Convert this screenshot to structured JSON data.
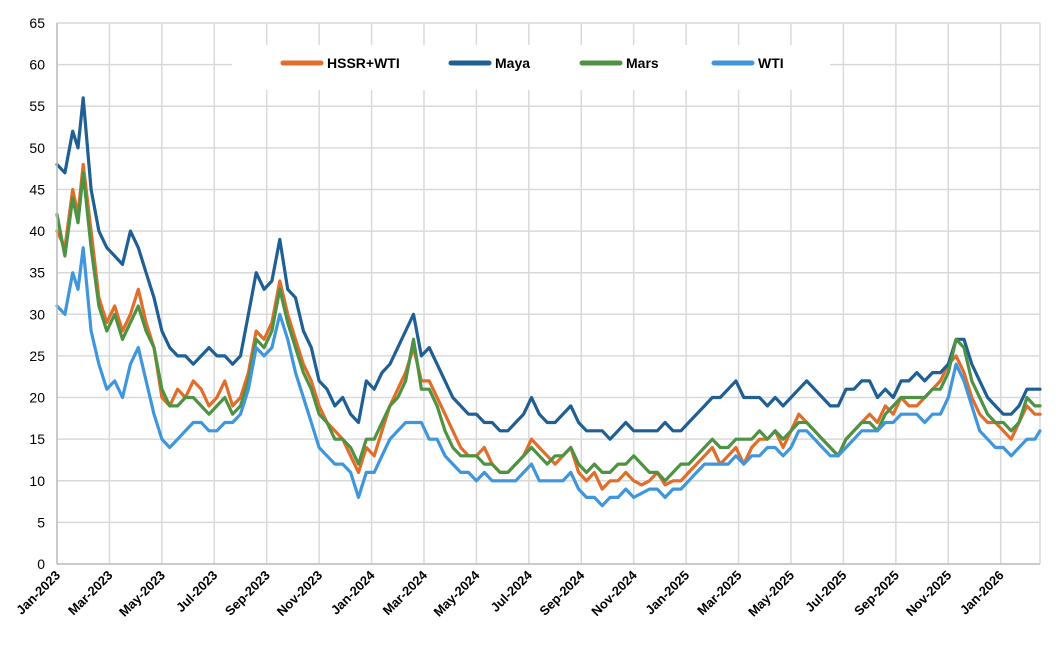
{
  "chart_data": {
    "type": "line",
    "title": "",
    "xlabel": "",
    "ylabel": "",
    "ylim": [
      0,
      65
    ],
    "yticks": [
      0,
      5,
      10,
      15,
      20,
      25,
      30,
      35,
      40,
      45,
      50,
      55,
      60,
      65
    ],
    "xlim_months": [
      0,
      37.5
    ],
    "xticks": [
      {
        "label": "Jan-2023",
        "month": 0
      },
      {
        "label": "Mar-2023",
        "month": 2
      },
      {
        "label": "May-2023",
        "month": 4
      },
      {
        "label": "Jul-2023",
        "month": 6
      },
      {
        "label": "Sep-2023",
        "month": 8
      },
      {
        "label": "Nov-2023",
        "month": 10
      },
      {
        "label": "Jan-2024",
        "month": 12
      },
      {
        "label": "Mar-2024",
        "month": 14
      },
      {
        "label": "May-2024",
        "month": 16
      },
      {
        "label": "Jul-2024",
        "month": 18
      },
      {
        "label": "Sep-2024",
        "month": 20
      },
      {
        "label": "Nov-2024",
        "month": 22
      },
      {
        "label": "Jan-2025",
        "month": 24
      },
      {
        "label": "Mar-2025",
        "month": 26
      },
      {
        "label": "May-2025",
        "month": 28
      },
      {
        "label": "Jul-2025",
        "month": 30
      },
      {
        "label": "Sep-2025",
        "month": 32
      },
      {
        "label": "Nov-2025",
        "month": 34
      },
      {
        "label": "Jan-2026",
        "month": 36
      }
    ],
    "grid": true,
    "legend_position": "top",
    "x_months": [
      0,
      0.3,
      0.6,
      0.8,
      1.0,
      1.3,
      1.6,
      1.9,
      2.2,
      2.5,
      2.8,
      3.1,
      3.4,
      3.7,
      4.0,
      4.3,
      4.6,
      4.9,
      5.2,
      5.5,
      5.8,
      6.1,
      6.4,
      6.7,
      7.0,
      7.3,
      7.6,
      7.9,
      8.2,
      8.5,
      8.8,
      9.1,
      9.4,
      9.7,
      10.0,
      10.3,
      10.6,
      10.9,
      11.2,
      11.5,
      11.8,
      12.1,
      12.4,
      12.7,
      13.0,
      13.3,
      13.6,
      13.9,
      14.2,
      14.5,
      14.8,
      15.1,
      15.4,
      15.7,
      16.0,
      16.3,
      16.6,
      16.9,
      17.2,
      17.5,
      17.8,
      18.1,
      18.4,
      18.7,
      19.0,
      19.3,
      19.6,
      19.9,
      20.2,
      20.5,
      20.8,
      21.1,
      21.4,
      21.7,
      22.0,
      22.3,
      22.6,
      22.9,
      23.2,
      23.5,
      23.8,
      24.1,
      24.4,
      24.7,
      25.0,
      25.3,
      25.6,
      25.9,
      26.2,
      26.5,
      26.8,
      27.1,
      27.4,
      27.7,
      28.0,
      28.3,
      28.6,
      28.9,
      29.2,
      29.5,
      29.8,
      30.1,
      30.4,
      30.7,
      31.0,
      31.3,
      31.6,
      31.9,
      32.2,
      32.5,
      32.8,
      33.1,
      33.4,
      33.7,
      34.0,
      34.3,
      34.6,
      34.9,
      35.2,
      35.5,
      35.8,
      36.1,
      36.4,
      36.7,
      37.0,
      37.3,
      37.5
    ],
    "series": [
      {
        "name": "HSSR+WTI",
        "color": "#e26d2a",
        "values": [
          40,
          38,
          45,
          42,
          48,
          40,
          32,
          29,
          31,
          28,
          30,
          33,
          29,
          26,
          20,
          19,
          21,
          20,
          22,
          21,
          19,
          20,
          22,
          19,
          20,
          23,
          28,
          27,
          29,
          34,
          30,
          27,
          24,
          22,
          19,
          17,
          16,
          15,
          13,
          11,
          14,
          13,
          16,
          19,
          21,
          23,
          26,
          22,
          22,
          20,
          18,
          16,
          14,
          13,
          13,
          14,
          12,
          11,
          11,
          12,
          13,
          15,
          14,
          13,
          12,
          13,
          14,
          11,
          10,
          11,
          9,
          10,
          10,
          11,
          10,
          9.5,
          10,
          11,
          9.5,
          10,
          10,
          11,
          12,
          13,
          14,
          12,
          13,
          14,
          12,
          14,
          15,
          15,
          16,
          14,
          16,
          18,
          17,
          16,
          15,
          14,
          13,
          15,
          16,
          17,
          18,
          17,
          19,
          18,
          20,
          19,
          19,
          20,
          21,
          22,
          24,
          25,
          23,
          20,
          18,
          17,
          17,
          16,
          15,
          17,
          19,
          18,
          18
        ]
      },
      {
        "name": "Maya",
        "color": "#1f5f94",
        "values": [
          48,
          47,
          52,
          50,
          56,
          45,
          40,
          38,
          37,
          36,
          40,
          38,
          35,
          32,
          28,
          26,
          25,
          25,
          24,
          25,
          26,
          25,
          25,
          24,
          25,
          30,
          35,
          33,
          34,
          39,
          33,
          32,
          28,
          26,
          22,
          21,
          19,
          20,
          18,
          17,
          22,
          21,
          23,
          24,
          26,
          28,
          30,
          25,
          26,
          24,
          22,
          20,
          19,
          18,
          18,
          17,
          17,
          16,
          16,
          17,
          18,
          20,
          18,
          17,
          17,
          18,
          19,
          17,
          16,
          16,
          16,
          15,
          16,
          17,
          16,
          16,
          16,
          16,
          17,
          16,
          16,
          17,
          18,
          19,
          20,
          20,
          21,
          22,
          20,
          20,
          20,
          19,
          20,
          19,
          20,
          21,
          22,
          21,
          20,
          19,
          19,
          21,
          21,
          22,
          22,
          20,
          21,
          20,
          22,
          22,
          23,
          22,
          23,
          23,
          24,
          27,
          27,
          24,
          22,
          20,
          19,
          18,
          18,
          19,
          21,
          21,
          21
        ]
      },
      {
        "name": "Mars",
        "color": "#4e9243",
        "values": [
          42,
          37,
          44,
          41,
          47,
          38,
          31,
          28,
          30,
          27,
          29,
          31,
          28,
          26,
          21,
          19,
          19,
          20,
          20,
          19,
          18,
          19,
          20,
          18,
          19,
          22,
          27,
          26,
          28,
          33,
          29,
          26,
          23,
          21,
          18,
          17,
          15,
          15,
          14,
          12,
          15,
          15,
          17,
          19,
          20,
          22,
          27,
          21,
          21,
          19,
          16,
          14,
          13,
          13,
          13,
          12,
          12,
          11,
          11,
          12,
          13,
          14,
          13,
          12,
          13,
          13,
          14,
          12,
          11,
          12,
          11,
          11,
          12,
          12,
          13,
          12,
          11,
          11,
          10,
          11,
          12,
          12,
          13,
          14,
          15,
          14,
          14,
          15,
          15,
          15,
          16,
          15,
          16,
          15,
          16,
          17,
          17,
          16,
          15,
          14,
          13,
          15,
          16,
          17,
          17,
          16,
          18,
          19,
          20,
          20,
          20,
          20,
          21,
          21,
          23,
          27,
          26,
          22,
          20,
          18,
          17,
          17,
          16,
          17,
          20,
          19,
          19
        ]
      },
      {
        "name": "WTI",
        "color": "#3f96dd",
        "values": [
          31,
          30,
          35,
          33,
          38,
          28,
          24,
          21,
          22,
          20,
          24,
          26,
          22,
          18,
          15,
          14,
          15,
          16,
          17,
          17,
          16,
          16,
          17,
          17,
          18,
          21,
          26,
          25,
          26,
          30,
          27,
          23,
          20,
          17,
          14,
          13,
          12,
          12,
          11,
          8,
          11,
          11,
          13,
          15,
          16,
          17,
          17,
          17,
          15,
          15,
          13,
          12,
          11,
          11,
          10,
          11,
          10,
          10,
          10,
          10,
          11,
          12,
          10,
          10,
          10,
          10,
          11,
          9,
          8,
          8,
          7,
          8,
          8,
          9,
          8,
          8.5,
          9,
          9,
          8,
          9,
          9,
          10,
          11,
          12,
          12,
          12,
          12,
          13,
          12,
          13,
          13,
          14,
          14,
          13,
          14,
          16,
          16,
          15,
          14,
          13,
          13,
          14,
          15,
          16,
          16,
          16,
          17,
          17,
          18,
          18,
          18,
          17,
          18,
          18,
          20,
          24,
          22,
          19,
          16,
          15,
          14,
          14,
          13,
          14,
          15,
          15,
          16
        ]
      }
    ]
  }
}
